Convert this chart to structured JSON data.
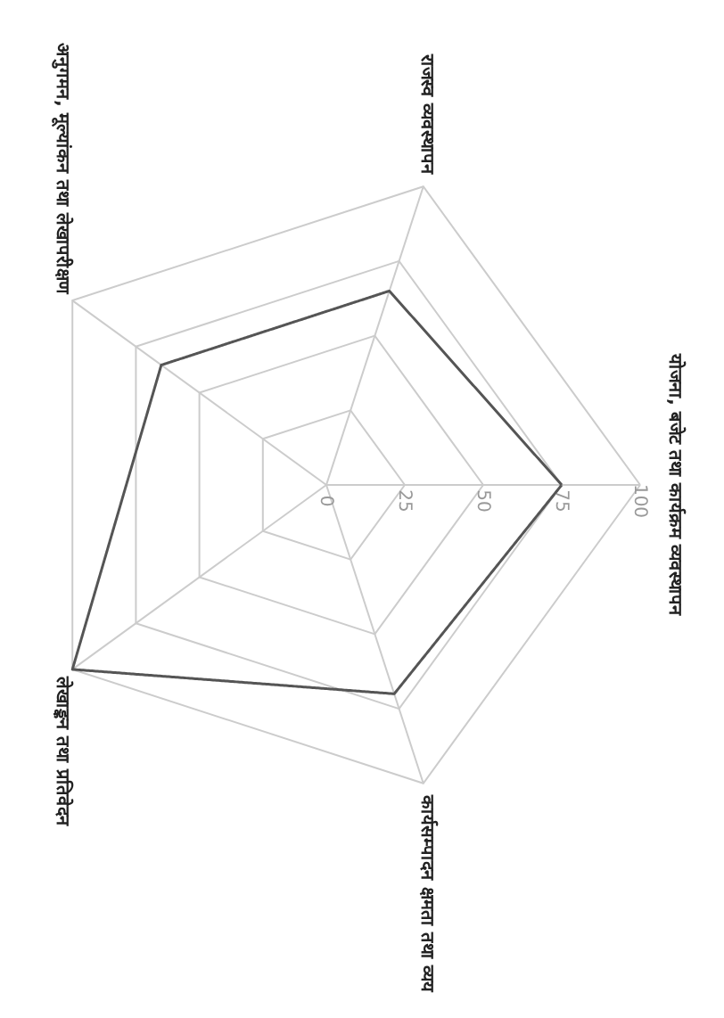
{
  "chart_data": {
    "type": "radar",
    "categories": [
      "योजना, बजेट तथा कार्यक्रम व्यवस्थापन",
      "कार्यसम्पादन क्षमता तथा व्यय",
      "लेखाङ्कन तथा प्रतिवेदन",
      "अनुगमन, मूल्यांकन तथा लेखापरीक्षण",
      "राजस्व व्यवस्थापन"
    ],
    "series": [
      {
        "color": "#555555",
        "values": [
          75,
          70,
          100,
          65,
          65
        ]
      }
    ],
    "ylim": [
      0,
      100
    ],
    "yticks": [
      0,
      25,
      50,
      75,
      100
    ],
    "grid": true,
    "marker": "none",
    "line_style": "solid"
  }
}
